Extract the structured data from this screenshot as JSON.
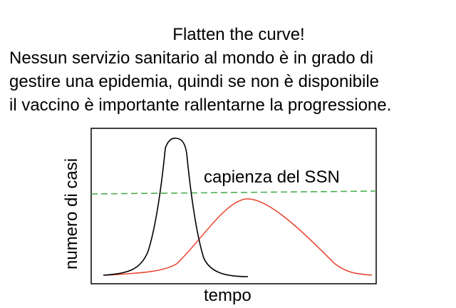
{
  "heading": {
    "title": "Flatten the curve!",
    "lines": [
      "Nessun servizio sanitario al mondo è in grado di",
      "gestire una epidemia, quindi se non è disponibile",
      "il vaccino è importante rallentarne la progressione."
    ]
  },
  "diagram": {
    "capacity_label": "capienza del SSN",
    "x_label": "tempo",
    "y_label": "numero di casi",
    "colors": {
      "frame": "#000000",
      "unmitigated_curve": "#000000",
      "mitigated_curve": "#e8412e",
      "capacity_line": "#4caf50"
    }
  }
}
